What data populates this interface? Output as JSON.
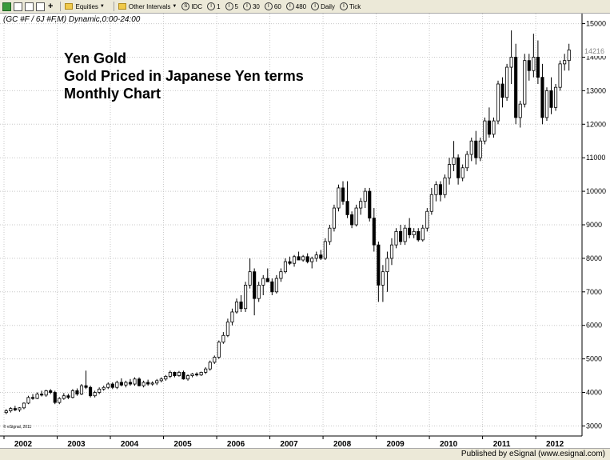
{
  "toolbar": {
    "equities_label": "Equities",
    "intervals_label": "Other Intervals",
    "items": [
      {
        "icon": "S",
        "label": "IDC"
      },
      {
        "icon": "I",
        "label": "1"
      },
      {
        "icon": "I",
        "label": "5"
      },
      {
        "icon": "I",
        "label": "30"
      },
      {
        "icon": "I",
        "label": "60"
      },
      {
        "icon": "I",
        "label": "480"
      },
      {
        "icon": "I",
        "label": "Daily"
      },
      {
        "icon": "I",
        "label": "Tick"
      }
    ]
  },
  "symbol_header": "(GC #F / 6J #F,M) Dynamic,0:00-24:00",
  "copyright": "© eSignal, 2011",
  "footer_text": "Published by eSignal (www.esignal.com)",
  "chart_data": {
    "type": "candlestick",
    "title_lines": [
      "Yen Gold",
      "Gold Priced in Japanese Yen terms",
      "Monthly Chart"
    ],
    "ylim": [
      2700,
      15300
    ],
    "y_ticks": [
      3000,
      4000,
      5000,
      6000,
      7000,
      8000,
      9000,
      10000,
      11000,
      12000,
      13000,
      14000,
      15000
    ],
    "last_value": 14216,
    "x_labels": [
      "2002",
      "2003",
      "2004",
      "2005",
      "2006",
      "2007",
      "2008",
      "2009",
      "2010",
      "2011",
      "2012"
    ],
    "bar_interval": "Monthly",
    "colors": {
      "up": "#ffffff",
      "down": "#000000",
      "outline": "#000000",
      "grid": "#c8c8c8"
    },
    "candles": [
      [
        3400,
        3500,
        3350,
        3450
      ],
      [
        3450,
        3560,
        3400,
        3520
      ],
      [
        3520,
        3600,
        3440,
        3480
      ],
      [
        3480,
        3560,
        3420,
        3540
      ],
      [
        3540,
        3700,
        3500,
        3680
      ],
      [
        3680,
        3900,
        3650,
        3850
      ],
      [
        3850,
        3950,
        3780,
        3820
      ],
      [
        3820,
        4000,
        3800,
        3950
      ],
      [
        3950,
        4050,
        3880,
        3920
      ],
      [
        3920,
        4080,
        3870,
        4050
      ],
      [
        4050,
        4100,
        3950,
        4000
      ],
      [
        4000,
        4050,
        3650,
        3700
      ],
      [
        3700,
        3860,
        3650,
        3820
      ],
      [
        3820,
        3980,
        3780,
        3900
      ],
      [
        3900,
        3960,
        3800,
        3850
      ],
      [
        3850,
        4100,
        3820,
        4050
      ],
      [
        4050,
        4120,
        3900,
        3950
      ],
      [
        3950,
        4250,
        3920,
        4200
      ],
      [
        4200,
        4650,
        4100,
        4150
      ],
      [
        4150,
        4200,
        3850,
        3900
      ],
      [
        3900,
        4050,
        3850,
        4000
      ],
      [
        4000,
        4150,
        3950,
        4100
      ],
      [
        4100,
        4200,
        4050,
        4150
      ],
      [
        4150,
        4300,
        4100,
        4250
      ],
      [
        4250,
        4300,
        4100,
        4150
      ],
      [
        4150,
        4350,
        4100,
        4300
      ],
      [
        4300,
        4420,
        4180,
        4220
      ],
      [
        4220,
        4350,
        4150,
        4300
      ],
      [
        4300,
        4400,
        4200,
        4250
      ],
      [
        4250,
        4450,
        4200,
        4400
      ],
      [
        4400,
        4450,
        4180,
        4200
      ],
      [
        4200,
        4350,
        4150,
        4300
      ],
      [
        4300,
        4380,
        4200,
        4250
      ],
      [
        4250,
        4330,
        4200,
        4280
      ],
      [
        4280,
        4400,
        4220,
        4350
      ],
      [
        4350,
        4450,
        4300,
        4400
      ],
      [
        4400,
        4520,
        4350,
        4480
      ],
      [
        4480,
        4650,
        4430,
        4600
      ],
      [
        4600,
        4620,
        4450,
        4500
      ],
      [
        4500,
        4640,
        4470,
        4600
      ],
      [
        4600,
        4650,
        4380,
        4400
      ],
      [
        4400,
        4540,
        4350,
        4500
      ],
      [
        4500,
        4580,
        4450,
        4550
      ],
      [
        4550,
        4600,
        4480,
        4520
      ],
      [
        4520,
        4620,
        4490,
        4600
      ],
      [
        4600,
        4750,
        4550,
        4700
      ],
      [
        4700,
        4950,
        4650,
        4900
      ],
      [
        4900,
        5100,
        4850,
        5050
      ],
      [
        5050,
        5550,
        5000,
        5500
      ],
      [
        5500,
        5800,
        5450,
        5700
      ],
      [
        5700,
        6200,
        5650,
        6100
      ],
      [
        6100,
        6500,
        6000,
        6400
      ],
      [
        6400,
        6800,
        6350,
        6700
      ],
      [
        6700,
        6900,
        6400,
        6500
      ],
      [
        6500,
        7300,
        6400,
        7200
      ],
      [
        7200,
        8000,
        7100,
        7600
      ],
      [
        7600,
        7700,
        6300,
        6800
      ],
      [
        6800,
        7300,
        6700,
        7200
      ],
      [
        7200,
        7500,
        6900,
        7400
      ],
      [
        7400,
        7700,
        7300,
        7300
      ],
      [
        7300,
        7400,
        6900,
        7000
      ],
      [
        7000,
        7500,
        6950,
        7400
      ],
      [
        7400,
        7700,
        7300,
        7600
      ],
      [
        7600,
        8000,
        7550,
        7900
      ],
      [
        7900,
        8050,
        7800,
        7850
      ],
      [
        7850,
        8100,
        7750,
        8050
      ],
      [
        8050,
        8200,
        7950,
        7950
      ],
      [
        7950,
        8100,
        7900,
        8050
      ],
      [
        8050,
        8150,
        7850,
        7900
      ],
      [
        7900,
        8050,
        7700,
        8000
      ],
      [
        8000,
        8200,
        7900,
        8100
      ],
      [
        8100,
        8250,
        7950,
        8000
      ],
      [
        8000,
        8600,
        7950,
        8500
      ],
      [
        8500,
        9000,
        8400,
        8900
      ],
      [
        8900,
        9600,
        8800,
        9500
      ],
      [
        9500,
        10200,
        9400,
        10100
      ],
      [
        10100,
        10300,
        9600,
        9700
      ],
      [
        9700,
        10300,
        9200,
        9300
      ],
      [
        9300,
        9400,
        8900,
        9000
      ],
      [
        9000,
        9600,
        8950,
        9500
      ],
      [
        9500,
        9800,
        9300,
        9700
      ],
      [
        9700,
        10100,
        9500,
        10000
      ],
      [
        10000,
        10100,
        9100,
        9200
      ],
      [
        9200,
        9500,
        8200,
        8400
      ],
      [
        8400,
        8500,
        6700,
        7200
      ],
      [
        7200,
        7800,
        6700,
        7600
      ],
      [
        7600,
        8200,
        7000,
        8000
      ],
      [
        8000,
        8600,
        7800,
        8400
      ],
      [
        8400,
        8900,
        8300,
        8800
      ],
      [
        8800,
        9000,
        8400,
        8500
      ],
      [
        8500,
        9000,
        8400,
        8900
      ],
      [
        8900,
        9200,
        8600,
        8700
      ],
      [
        8700,
        8900,
        8600,
        8800
      ],
      [
        8800,
        8900,
        8500,
        8550
      ],
      [
        8550,
        9000,
        8500,
        8900
      ],
      [
        8900,
        9500,
        8800,
        9400
      ],
      [
        9400,
        10100,
        9300,
        9900
      ],
      [
        9900,
        10300,
        9700,
        10200
      ],
      [
        10200,
        10300,
        9700,
        9900
      ],
      [
        9900,
        10500,
        9800,
        10400
      ],
      [
        10400,
        11000,
        10200,
        10800
      ],
      [
        10800,
        11500,
        10600,
        11000
      ],
      [
        11000,
        11100,
        10200,
        10400
      ],
      [
        10400,
        10800,
        10300,
        10700
      ],
      [
        10700,
        11200,
        10600,
        11100
      ],
      [
        11100,
        11600,
        10900,
        11500
      ],
      [
        11500,
        11800,
        10800,
        11000
      ],
      [
        11000,
        11600,
        10900,
        11500
      ],
      [
        11500,
        12200,
        11400,
        12100
      ],
      [
        12100,
        12500,
        11600,
        11700
      ],
      [
        11700,
        12200,
        11600,
        12100
      ],
      [
        12100,
        13300,
        12000,
        13200
      ],
      [
        13200,
        13400,
        12500,
        12800
      ],
      [
        12800,
        13800,
        12700,
        13700
      ],
      [
        13700,
        14800,
        13200,
        14000
      ],
      [
        14000,
        14400,
        12000,
        12200
      ],
      [
        12200,
        12700,
        11900,
        12600
      ],
      [
        12600,
        14100,
        12500,
        13900
      ],
      [
        13900,
        14100,
        13300,
        13600
      ],
      [
        13600,
        14700,
        13400,
        14000
      ],
      [
        14000,
        14500,
        13200,
        13400
      ],
      [
        13400,
        13800,
        12000,
        12200
      ],
      [
        12200,
        13100,
        12100,
        13000
      ],
      [
        13000,
        13400,
        12300,
        12500
      ],
      [
        12500,
        13200,
        12400,
        13100
      ],
      [
        13100,
        13900,
        13000,
        13800
      ],
      [
        13800,
        14100,
        13600,
        13900
      ],
      [
        13900,
        14400,
        13600,
        14216
      ]
    ]
  }
}
